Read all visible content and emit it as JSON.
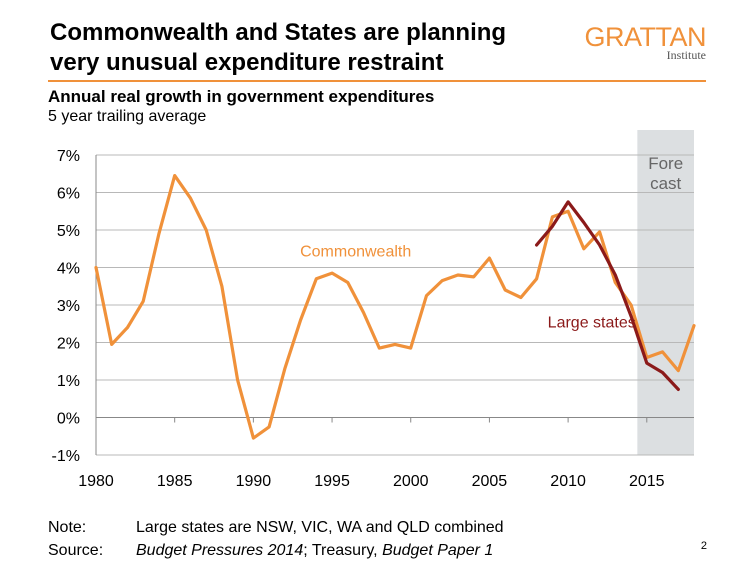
{
  "title_line1": "Commonwealth and States are planning",
  "title_line2": "very unusual expenditure restraint",
  "logo": {
    "main": "GRATTAN",
    "sub": "Institute"
  },
  "subtitle": "Annual real growth in government expenditures",
  "subsubtitle": "5 year trailing average",
  "notes": {
    "note_label": "Note:",
    "note_text": "Large states are NSW, VIC, WA and QLD combined",
    "source_label": "Source:",
    "source_part1": "Budget Pressures 2014",
    "source_part2": "; Treasury, ",
    "source_part3": "Budget Paper 1"
  },
  "page_number": "2",
  "colors": {
    "commonwealth": "#f0913a",
    "large_states": "#8b1a1a",
    "forecast_band": "#dcdfe1",
    "accent": "#f0913a"
  },
  "chart_data": {
    "type": "line",
    "x_ticks": [
      1980,
      1985,
      1990,
      1995,
      2000,
      2005,
      2010,
      2015
    ],
    "y_tick_labels": [
      "-1%",
      "0%",
      "1%",
      "2%",
      "3%",
      "4%",
      "5%",
      "6%",
      "7%"
    ],
    "xlim": [
      1980,
      2018
    ],
    "ylim": [
      -1,
      7
    ],
    "grid": true,
    "forecast": {
      "label_line1": "Fore",
      "label_line2": "cast",
      "x_start": 2014.4,
      "x_end": 2018
    },
    "series": [
      {
        "name": "Commonwealth",
        "color": "#f0913a",
        "x": [
          1980,
          1981,
          1982,
          1983,
          1984,
          1985,
          1986,
          1987,
          1988,
          1989,
          1990,
          1991,
          1992,
          1993,
          1994,
          1995,
          1996,
          1997,
          1998,
          1999,
          2000,
          2001,
          2002,
          2003,
          2004,
          2005,
          2006,
          2007,
          2008,
          2009,
          2010,
          2011,
          2012,
          2013,
          2014,
          2015,
          2016,
          2017,
          2018
        ],
        "values": [
          4.0,
          1.95,
          2.4,
          3.1,
          4.9,
          6.45,
          5.85,
          5.0,
          3.5,
          1.0,
          -0.55,
          -0.25,
          1.3,
          2.6,
          3.7,
          3.85,
          3.6,
          2.8,
          1.85,
          1.95,
          1.85,
          3.25,
          3.65,
          3.8,
          3.75,
          4.25,
          3.4,
          3.2,
          3.7,
          5.35,
          5.5,
          4.5,
          4.95,
          3.6,
          3.0,
          1.6,
          1.75,
          1.25,
          2.45
        ]
      },
      {
        "name": "Large states",
        "color": "#8b1a1a",
        "x": [
          2008,
          2009,
          2010,
          2011,
          2012,
          2013,
          2014,
          2015,
          2016,
          2017
        ],
        "values": [
          4.6,
          5.1,
          5.75,
          5.2,
          4.6,
          3.8,
          2.7,
          1.45,
          1.2,
          0.75
        ]
      }
    ],
    "annotations": [
      {
        "text": "Commonwealth",
        "x": 1996.5,
        "y": 4.3,
        "color": "#f0913a"
      },
      {
        "text": "Large states",
        "x": 2011.5,
        "y": 2.4,
        "color": "#8b1a1a"
      }
    ]
  }
}
